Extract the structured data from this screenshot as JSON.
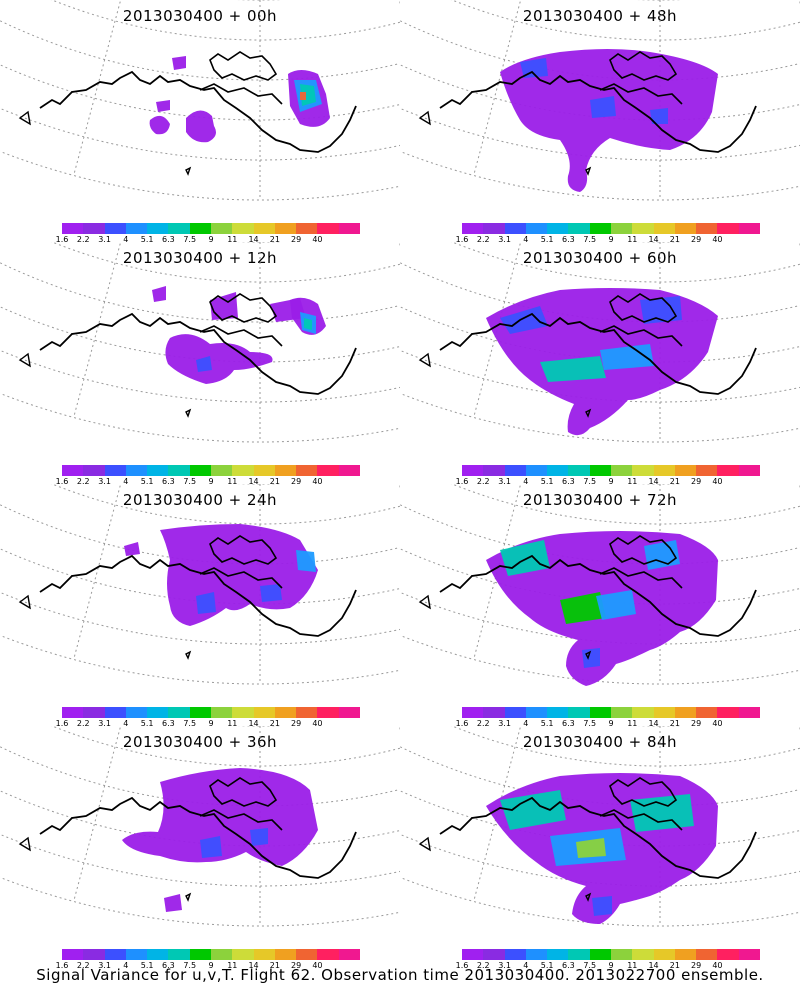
{
  "panels": [
    {
      "title": "2013030400 + 00h"
    },
    {
      "title": "2013030400 + 48h"
    },
    {
      "title": "2013030400 + 12h"
    },
    {
      "title": "2013030400 + 60h"
    },
    {
      "title": "2013030400 + 24h"
    },
    {
      "title": "2013030400 + 72h"
    },
    {
      "title": "2013030400 + 36h"
    },
    {
      "title": "2013030400 + 84h"
    }
  ],
  "colorbar": {
    "labels": [
      "1.6",
      "2.2",
      "3.1",
      "4",
      "5.1",
      "6.3",
      "7.5",
      "9",
      "11",
      "14",
      "21",
      "29",
      "40"
    ],
    "colors": [
      "#a020f0",
      "#8a2be2",
      "#3c50ff",
      "#1e90ff",
      "#00b4e6",
      "#00c8b4",
      "#00c800",
      "#8cd23c",
      "#cddc39",
      "#e6c828",
      "#f0a020",
      "#f06432",
      "#ff2060",
      "#f01890"
    ]
  },
  "caption": "Signal Variance for u,v,T. Flight 62. Observation time 2013030400. 2013022700 ensemble."
}
